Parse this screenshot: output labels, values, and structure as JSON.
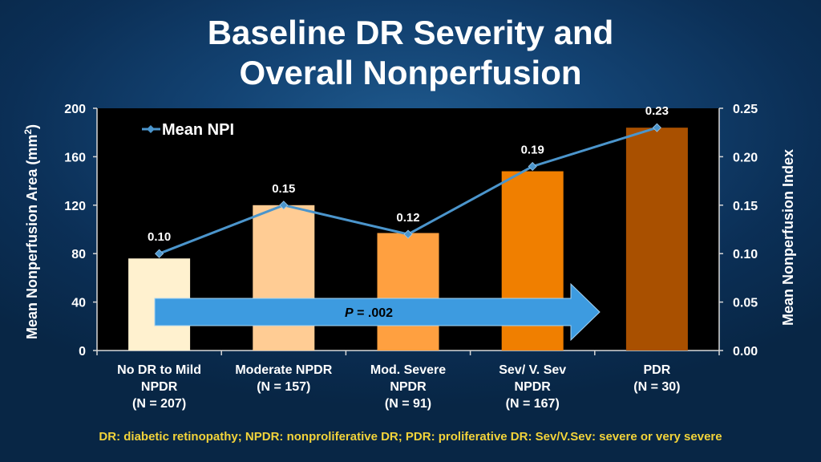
{
  "chart_data": {
    "type": "bar",
    "title": [
      "Baseline DR Severity and",
      "Overall Nonperfusion"
    ],
    "ylabel": "Mean Nonperfusion Area (mm²)",
    "ylabel_main": "Mean Nonperfusion Area (mm",
    "ylabel_sup": "2",
    "ylabel_end": ")",
    "y2label": "Mean Nonperfusion Index",
    "ylim": [
      0,
      200
    ],
    "y_ticks": [
      0,
      40,
      80,
      120,
      160,
      200
    ],
    "y_tick_labels": [
      "0",
      "40",
      "80",
      "120",
      "160",
      "200"
    ],
    "y2lim": [
      0,
      0.25
    ],
    "y2_ticks": [
      0,
      0.05,
      0.1,
      0.15,
      0.2,
      0.25
    ],
    "y2_tick_labels": [
      "0.00",
      "0.05",
      "0.10",
      "0.15",
      "0.20",
      "0.25"
    ],
    "categories": [
      [
        "No DR to Mild",
        "NPDR",
        "(N = 207)"
      ],
      [
        "Moderate NPDR",
        "(N = 157)"
      ],
      [
        "Mod. Severe",
        "NPDR",
        "(N = 91)"
      ],
      [
        "Sev/ V. Sev",
        "NPDR",
        "(N = 167)"
      ],
      [
        "PDR",
        "(N = 30)"
      ]
    ],
    "series": [
      {
        "name": "Mean Nonperfusion Area",
        "kind": "bar",
        "axis": "left",
        "values": [
          76,
          120,
          97,
          148,
          184
        ],
        "colors": [
          "#fff1cf",
          "#ffcc94",
          "#ffa040",
          "#f07f00",
          "#a95000"
        ]
      },
      {
        "name": "Mean NPI",
        "kind": "line",
        "axis": "right",
        "values": [
          0.1,
          0.15,
          0.12,
          0.19,
          0.23
        ],
        "labels": [
          "0.10",
          "0.15",
          "0.12",
          "0.19",
          "0.23"
        ],
        "color": "#4b95cc"
      }
    ],
    "legend": {
      "label": "Mean NPI",
      "position": "top-left"
    },
    "annotation": {
      "prefix": "P",
      "text": " = .002",
      "color": "#3d9be0"
    }
  },
  "footnote": "DR: diabetic retinopathy; NPDR: nonproliferative DR; PDR: proliferative DR: Sev/V.Sev: severe or very severe"
}
